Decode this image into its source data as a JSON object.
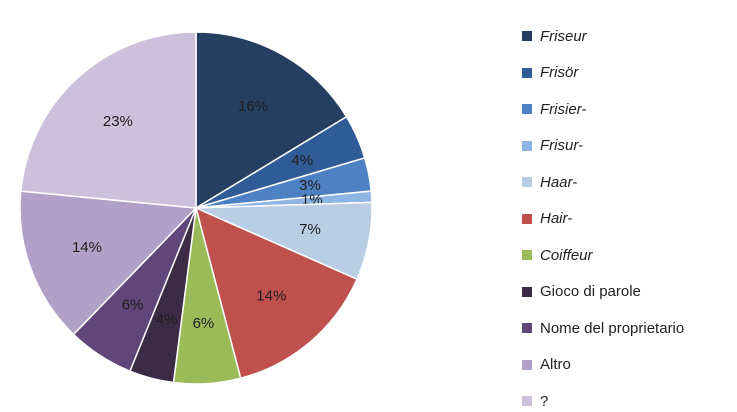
{
  "chart_data": {
    "type": "pie",
    "start_angle_degrees": 90,
    "direction": "clockwise",
    "slices": [
      {
        "label": "Friseur",
        "value": 16,
        "display": "16%",
        "color": "#243f60",
        "italic": true
      },
      {
        "label": "Frisör",
        "value": 4,
        "display": "4%",
        "color": "#2f5c96",
        "italic": true
      },
      {
        "label": "Frisier-",
        "value": 3,
        "display": "3%",
        "color": "#4e81c4",
        "italic": true
      },
      {
        "label": "Frisur-",
        "value": 1,
        "display": "1%",
        "color": "#8eb4e3",
        "italic": true
      },
      {
        "label": "Haar-",
        "value": 7,
        "display": "7%",
        "color": "#b9cde5",
        "italic": true
      },
      {
        "label": "Hair-",
        "value": 14,
        "display": "14%",
        "color": "#c0504d",
        "italic": true
      },
      {
        "label": "Coiffeur",
        "value": 6,
        "display": "6%",
        "color": "#9bbb59",
        "italic": true
      },
      {
        "label": "Gioco di parole",
        "value": 4,
        "display": "4%",
        "color": "#3d2b46",
        "italic": false
      },
      {
        "label": "Nome del proprietario",
        "value": 6,
        "display": "6%",
        "color": "#614679",
        "italic": false
      },
      {
        "label": "Altro",
        "value": 14,
        "display": "14%",
        "color": "#b1a0c7",
        "italic": false
      },
      {
        "label": "?",
        "value": 23,
        "display": "23%",
        "color": "#ccc0da",
        "italic": false
      }
    ],
    "legend_position": "right"
  }
}
